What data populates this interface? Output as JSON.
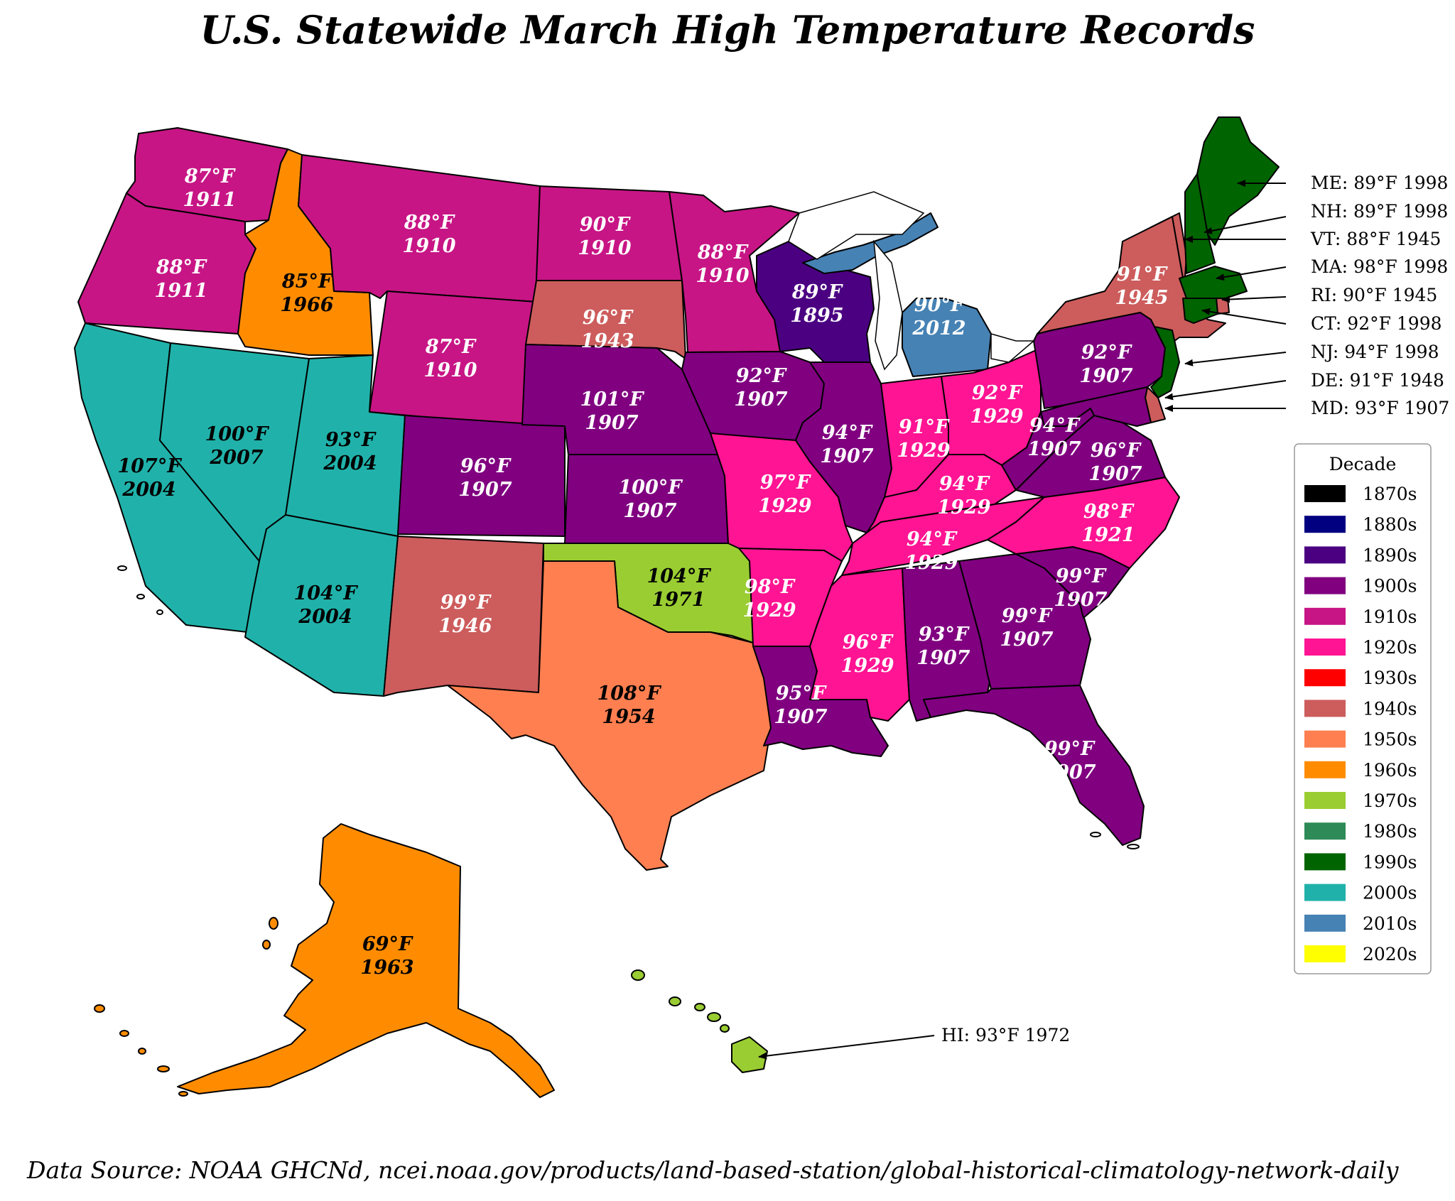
{
  "title": "U.S. Statewide March High Temperature Records",
  "source": "Data Source: NOAA GHCNd, ncei.noaa.gov/products/land-based-station/global-historical-climatology-network-daily",
  "legend": {
    "title": "Decade",
    "items": [
      {
        "label": "1870s",
        "color": "#000000"
      },
      {
        "label": "1880s",
        "color": "#000080"
      },
      {
        "label": "1890s",
        "color": "#4b0082"
      },
      {
        "label": "1900s",
        "color": "#800080"
      },
      {
        "label": "1910s",
        "color": "#c71585"
      },
      {
        "label": "1920s",
        "color": "#ff1493"
      },
      {
        "label": "1930s",
        "color": "#ff0000"
      },
      {
        "label": "1940s",
        "color": "#cd5c5c"
      },
      {
        "label": "1950s",
        "color": "#ff7f50"
      },
      {
        "label": "1960s",
        "color": "#ff8c00"
      },
      {
        "label": "1970s",
        "color": "#9acd32"
      },
      {
        "label": "1980s",
        "color": "#2e8b57"
      },
      {
        "label": "1990s",
        "color": "#006400"
      },
      {
        "label": "2000s",
        "color": "#20b2aa"
      },
      {
        "label": "2010s",
        "color": "#4682b4"
      },
      {
        "label": "2020s",
        "color": "#ffff00"
      }
    ]
  },
  "states": {
    "WA": {
      "temp": "87°F",
      "year": "1911"
    },
    "OR": {
      "temp": "88°F",
      "year": "1911"
    },
    "CA": {
      "temp": "107°F",
      "year": "2004"
    },
    "ID": {
      "temp": "85°F",
      "year": "1966"
    },
    "NV": {
      "temp": "100°F",
      "year": "2007"
    },
    "MT": {
      "temp": "88°F",
      "year": "1910"
    },
    "WY": {
      "temp": "87°F",
      "year": "1910"
    },
    "UT": {
      "temp": "93°F",
      "year": "2004"
    },
    "AZ": {
      "temp": "104°F",
      "year": "2004"
    },
    "CO": {
      "temp": "96°F",
      "year": "1907"
    },
    "NM": {
      "temp": "99°F",
      "year": "1946"
    },
    "ND": {
      "temp": "90°F",
      "year": "1910"
    },
    "SD": {
      "temp": "96°F",
      "year": "1943"
    },
    "NE": {
      "temp": "101°F",
      "year": "1907"
    },
    "KS": {
      "temp": "100°F",
      "year": "1907"
    },
    "OK": {
      "temp": "104°F",
      "year": "1971"
    },
    "TX": {
      "temp": "108°F",
      "year": "1954"
    },
    "MN": {
      "temp": "88°F",
      "year": "1910"
    },
    "IA": {
      "temp": "92°F",
      "year": "1907"
    },
    "MO": {
      "temp": "97°F",
      "year": "1929"
    },
    "AR": {
      "temp": "98°F",
      "year": "1929"
    },
    "LA": {
      "temp": "95°F",
      "year": "1907"
    },
    "WI": {
      "temp": "89°F",
      "year": "1895"
    },
    "IL": {
      "temp": "94°F",
      "year": "1907"
    },
    "MI": {
      "temp": "90°F",
      "year": "2012"
    },
    "IN": {
      "temp": "91°F",
      "year": "1929"
    },
    "OH": {
      "temp": "92°F",
      "year": "1929"
    },
    "KY": {
      "temp": "94°F",
      "year": "1929"
    },
    "TN": {
      "temp": "94°F",
      "year": "1929"
    },
    "MS": {
      "temp": "96°F",
      "year": "1929"
    },
    "AL": {
      "temp": "93°F",
      "year": "1907"
    },
    "GA": {
      "temp": "99°F",
      "year": "1907"
    },
    "FL": {
      "temp": "99°F",
      "year": "1907"
    },
    "SC": {
      "temp": "99°F",
      "year": "1907"
    },
    "NC": {
      "temp": "98°F",
      "year": "1921"
    },
    "VA": {
      "temp": "96°F",
      "year": "1907"
    },
    "WV": {
      "temp": "94°F",
      "year": "1907"
    },
    "PA": {
      "temp": "92°F",
      "year": "1907"
    },
    "NY": {
      "temp": "91°F",
      "year": "1945"
    },
    "AK": {
      "temp": "69°F",
      "year": "1963"
    }
  },
  "callouts": [
    "ME: 89°F 1998",
    "NH: 89°F 1998",
    "VT: 88°F 1945",
    "MA: 98°F 1998",
    "RI: 90°F 1945",
    "CT: 92°F 1998",
    "NJ: 94°F 1998",
    "DE: 91°F 1948",
    "MD: 93°F 1907",
    "HI: 93°F 1972"
  ]
}
